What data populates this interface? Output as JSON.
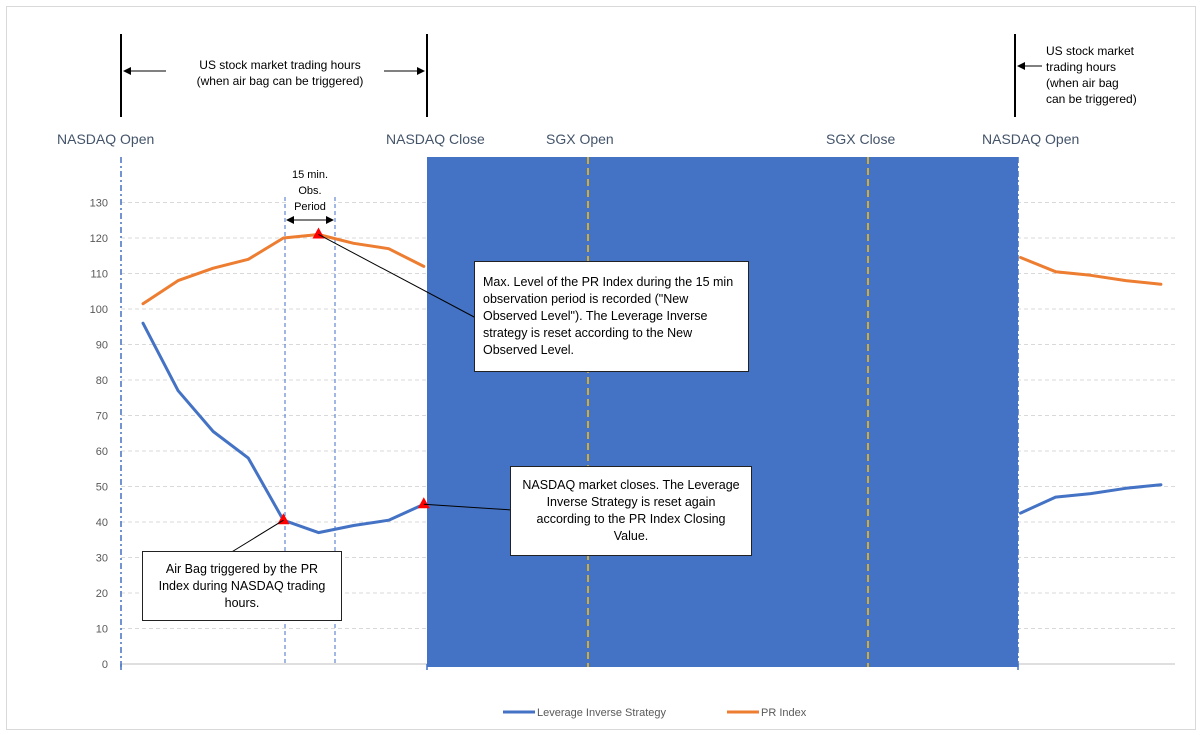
{
  "chart_data": {
    "type": "line",
    "title": "",
    "ylim": [
      0,
      130
    ],
    "ytick_step": 10,
    "yticks": [
      "0",
      "10",
      "20",
      "30",
      "40",
      "50",
      "60",
      "70",
      "80",
      "90",
      "100",
      "110",
      "120",
      "130"
    ],
    "series": [
      {
        "name": "Leverage Inverse Strategy",
        "color": "#4472c4",
        "segments": [
          [
            [
              0,
              96
            ],
            [
              1,
              77
            ],
            [
              2,
              65.5
            ],
            [
              3,
              58
            ],
            [
              4,
              40.5
            ],
            [
              5,
              37
            ],
            [
              6,
              39
            ],
            [
              7,
              40.5
            ],
            [
              8,
              45
            ]
          ],
          [
            [
              25,
              42.5
            ],
            [
              26,
              47
            ],
            [
              27,
              48
            ],
            [
              28,
              49.5
            ],
            [
              29,
              50.5
            ]
          ]
        ]
      },
      {
        "name": "PR Index",
        "color": "#ed7d31",
        "segments": [
          [
            [
              0,
              101.5
            ],
            [
              1,
              108
            ],
            [
              2,
              111.5
            ],
            [
              3,
              114
            ],
            [
              4,
              120
            ],
            [
              5,
              121
            ],
            [
              6,
              118.5
            ],
            [
              7,
              117
            ],
            [
              8,
              112
            ]
          ],
          [
            [
              25,
              114.5
            ],
            [
              26,
              110.5
            ],
            [
              27,
              109.5
            ],
            [
              28,
              108
            ],
            [
              29,
              107
            ]
          ]
        ]
      }
    ],
    "markers": [
      {
        "series": "PR Index",
        "x": 5,
        "y": 121
      },
      {
        "series": "Leverage Inverse Strategy",
        "x": 4,
        "y": 40.5
      },
      {
        "series": "Leverage Inverse Strategy",
        "x": 8,
        "y": 45
      }
    ],
    "vertical_events": [
      {
        "label": "NASDAQ Open"
      },
      {
        "label": "NASDAQ Close"
      },
      {
        "label": "SGX Open"
      },
      {
        "label": "SGX Close"
      },
      {
        "label": "NASDAQ Open"
      }
    ],
    "shaded_region": {
      "label": "",
      "color": "#4472c4"
    },
    "observation_period": {
      "label_lines": [
        "15 min.",
        "Obs.",
        "Period"
      ]
    },
    "legend": {
      "position": "bottom-center",
      "entries": [
        {
          "label": "Leverage Inverse Strategy",
          "color": "#4472c4"
        },
        {
          "label": "PR Index",
          "color": "#ed7d31"
        }
      ]
    }
  },
  "annotations": {
    "trading_hours_left": [
      "US stock market trading hours",
      "(when air bag can be triggered)"
    ],
    "trading_hours_right": [
      "US stock market",
      "trading hours",
      "(when air bag",
      "can be triggered)"
    ],
    "callout_max_level": "Max. Level of the PR Index during the 15 min observation period is recorded (\"New Observed Level\"). The Leverage Inverse strategy is reset according to the New Observed Level.",
    "callout_close": "NASDAQ market closes. The Leverage Inverse Strategy is reset again according to the PR Index Closing Value.",
    "callout_airbag": "Air Bag triggered by the PR Index during NASDAQ trading hours."
  }
}
